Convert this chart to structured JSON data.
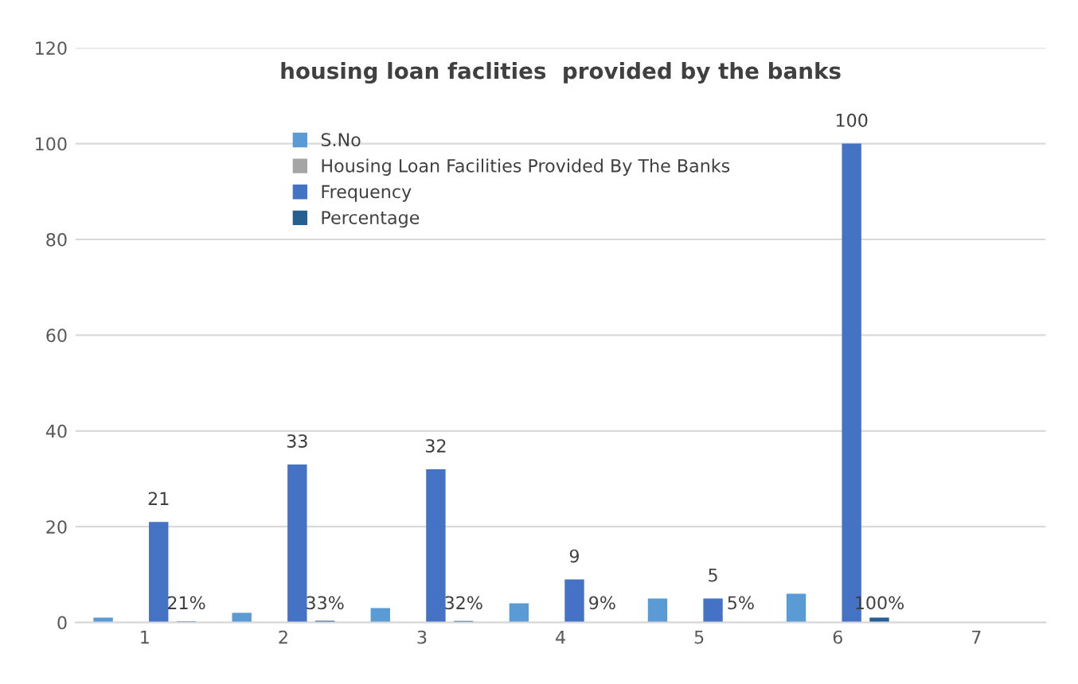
{
  "chart_data": {
    "type": "bar",
    "title": "housing loan faclities  provided by the banks",
    "categories": [
      "1",
      "2",
      "3",
      "4",
      "5",
      "6",
      "7"
    ],
    "series": [
      {
        "name": "S.No",
        "color": "#5b9bd5",
        "values": [
          1,
          2,
          3,
          4,
          5,
          6,
          null
        ]
      },
      {
        "name": "Housing Loan Facilities Provided By The Banks",
        "color": "#a5a5a5",
        "values": [
          null,
          null,
          null,
          null,
          null,
          null,
          null
        ]
      },
      {
        "name": "Frequency",
        "color": "#4472c4",
        "values": [
          21,
          33,
          32,
          9,
          5,
          100,
          null
        ],
        "value_labels": [
          "21",
          "33",
          "32",
          "9",
          "5",
          "100",
          null
        ]
      },
      {
        "name": "Percentage",
        "color": "#255e91",
        "values": [
          0.21,
          0.33,
          0.32,
          0.09,
          0.05,
          1,
          null
        ],
        "value_labels": [
          "21%",
          "33%",
          "32%",
          "9%",
          "5%",
          "100%",
          null
        ]
      }
    ],
    "ylim": [
      0,
      120
    ],
    "yticks": [
      0,
      20,
      40,
      60,
      80,
      100,
      120
    ],
    "grid": "y",
    "legend": "top"
  }
}
